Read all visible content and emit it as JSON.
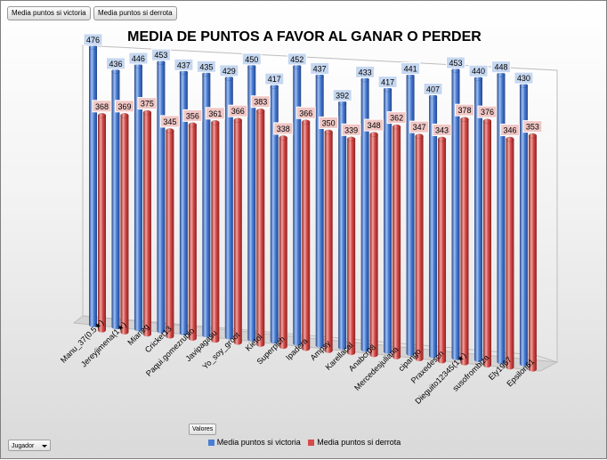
{
  "field_buttons": {
    "victoria": "Media puntos si victoria",
    "derrota": "Media puntos si derrota"
  },
  "valores_label": "Valores",
  "jugador_label": "Jugador",
  "colors": {
    "victoria": "#4a7ed6",
    "victoria_dark": "#24458c",
    "victoria_light": "#9fc0f2",
    "derrota": "#d64a48",
    "derrota_dark": "#8c2220",
    "derrota_light": "#f0a5a2",
    "victoria_label_bg": "#c6d7f0",
    "derrota_label_bg": "#f0c8c6"
  },
  "chart_data": {
    "type": "bar",
    "title": "MEDIA DE PUNTOS A FAVOR AL GANAR O PERDER",
    "xlabel": "",
    "ylabel": "",
    "ylim": [
      0,
      476
    ],
    "legend_position": "bottom",
    "categories": [
      "Manu_37(0.5★)",
      "Jereyjimena(1★)",
      "Mianeg",
      "Cricket13",
      "Paqui.gomezrubio",
      "Javipagasu",
      "Yo_soy_groot",
      "Kietol",
      "Superpich",
      "Ipadera",
      "Ampsy",
      "Karellacal",
      "Anabcr08",
      "Mercedesjuliana",
      "cipango",
      "Praxedescn",
      "Dieguito12345(1★)",
      "susofrombiza",
      "Ely1967",
      "Epsilon61"
    ],
    "series": [
      {
        "name": "Media puntos si victoria",
        "values": [
          476,
          436,
          446,
          453,
          437,
          435,
          429,
          450,
          417,
          452,
          437,
          392,
          433,
          417,
          441,
          407,
          453,
          440,
          448,
          430
        ]
      },
      {
        "name": "Media puntos si derrota",
        "values": [
          368,
          369,
          375,
          345,
          356,
          361,
          366,
          383,
          338,
          366,
          350,
          339,
          348,
          362,
          347,
          343,
          378,
          376,
          346,
          353
        ]
      }
    ]
  }
}
